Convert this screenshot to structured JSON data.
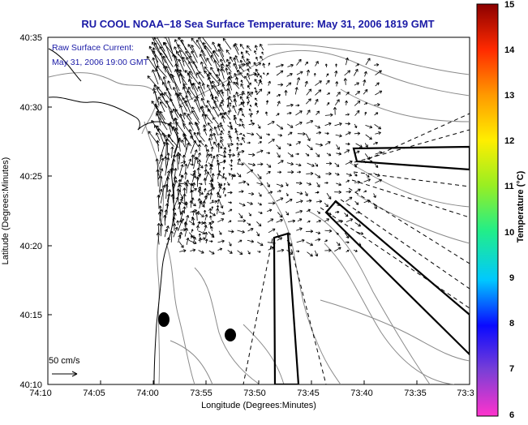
{
  "title": "RU COOL  NOAA–18  Sea Surface Temperature:  May 31, 2006 1819 GMT",
  "annotation": {
    "line1": "Raw Surface Current:",
    "line2": "May 31, 2006 19:00 GMT"
  },
  "scale_label": "50 cm/s",
  "xaxis": {
    "label": "Longitude (Degrees:Minutes)",
    "ticks": [
      "74:10",
      "74:05",
      "74:00",
      "73:55",
      "73:50",
      "73:45",
      "73:40",
      "73:35",
      "73:3"
    ]
  },
  "yaxis": {
    "label": "Latitude (Degrees:Minutes)",
    "ticks": [
      "40:35",
      "40:30",
      "40:25",
      "40:20",
      "40:15",
      "40:10"
    ]
  },
  "colorbar": {
    "label": "Temperature (°C)",
    "ticks": [
      "15",
      "14",
      "13",
      "12",
      "11",
      "10",
      "9",
      "8",
      "7",
      "6"
    ],
    "colors": [
      "#ff33cc",
      "#7b3fd6",
      "#0a0aff",
      "#00c8ff",
      "#22ee88",
      "#99ee22",
      "#ffee00",
      "#ff9900",
      "#ff2a00",
      "#8b0000"
    ]
  }
}
